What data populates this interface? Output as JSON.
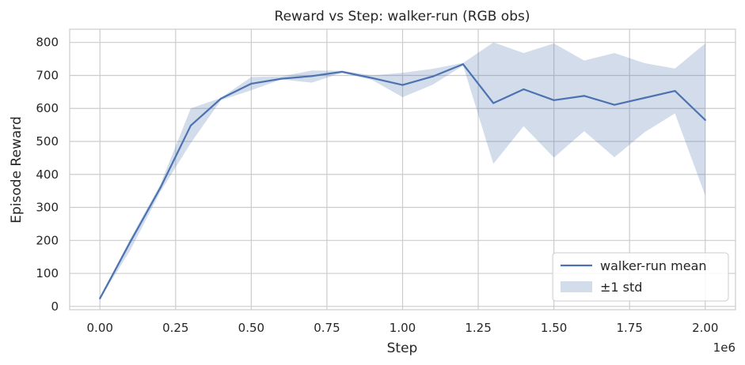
{
  "chart_data": {
    "type": "line",
    "title": "Reward vs Step: walker-run (RGB obs)",
    "xlabel": "Step",
    "ylabel": "Episode Reward",
    "x_offset_label": "1e6",
    "xlim": [
      -0.1,
      2.1
    ],
    "ylim": [
      -10,
      840
    ],
    "x_ticks": [
      0.0,
      0.25,
      0.5,
      0.75,
      1.0,
      1.25,
      1.5,
      1.75,
      2.0
    ],
    "x_tick_labels": [
      "0.00",
      "0.25",
      "0.50",
      "0.75",
      "1.00",
      "1.25",
      "1.50",
      "1.75",
      "2.00"
    ],
    "y_ticks": [
      0,
      100,
      200,
      300,
      400,
      500,
      600,
      700,
      800
    ],
    "y_tick_labels": [
      "0",
      "100",
      "200",
      "300",
      "400",
      "500",
      "600",
      "700",
      "800"
    ],
    "grid": true,
    "legend_position": "bottom-right",
    "colors": {
      "line": "#4c72b0",
      "band": "#4c72b0",
      "grid": "#cccccc",
      "frame": "#cccccc"
    },
    "x": [
      0.0,
      0.1,
      0.2,
      0.3,
      0.4,
      0.5,
      0.6,
      0.7,
      0.8,
      0.9,
      1.0,
      1.1,
      1.2,
      1.3,
      1.4,
      1.5,
      1.6,
      1.7,
      1.8,
      1.9,
      2.0
    ],
    "series": [
      {
        "name": "walker-run mean",
        "values": [
          24,
          195,
          360,
          548,
          630,
          675,
          690,
          698,
          711,
          692,
          671,
          697,
          734,
          616,
          658,
          625,
          638,
          611,
          632,
          653,
          565
        ]
      }
    ],
    "band": {
      "name": "±1 std",
      "upper": [
        26,
        205,
        370,
        600,
        632,
        695,
        697,
        715,
        714,
        700,
        708,
        720,
        738,
        800,
        768,
        797,
        745,
        768,
        737,
        721,
        797
      ],
      "lower": [
        22,
        170,
        348,
        495,
        625,
        655,
        688,
        678,
        708,
        686,
        634,
        672,
        730,
        432,
        546,
        451,
        531,
        452,
        528,
        585,
        336
      ]
    }
  }
}
